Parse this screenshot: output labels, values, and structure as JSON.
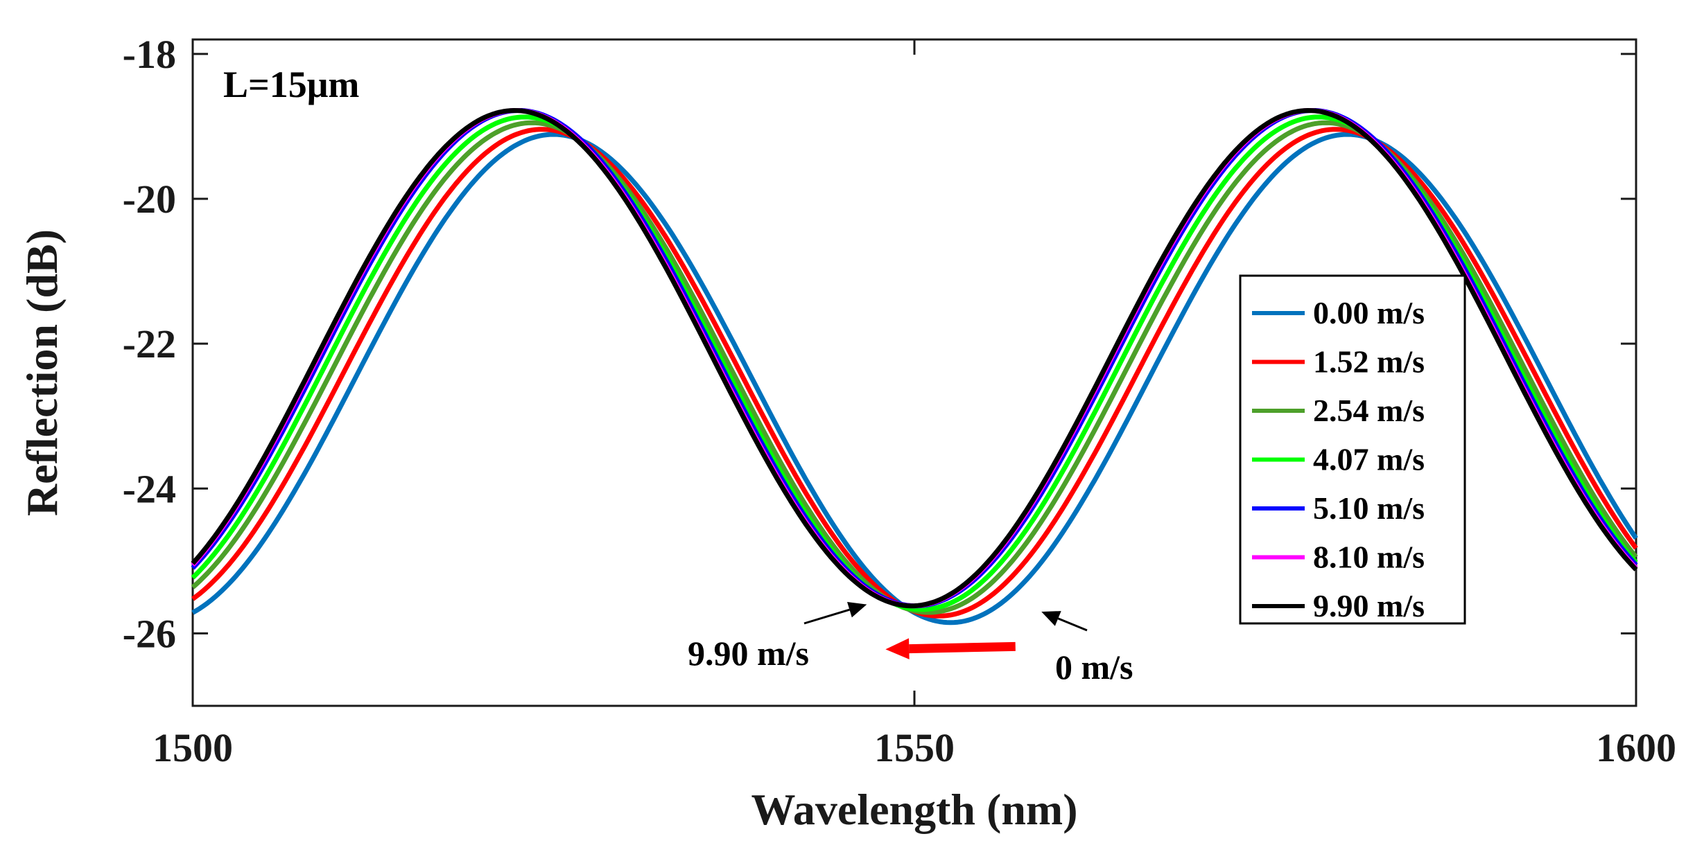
{
  "chart_data": {
    "type": "line",
    "title": "",
    "xlabel": "Wavelength (nm)",
    "ylabel": "Reflection (dB)",
    "xlim": [
      1500,
      1600
    ],
    "ylim": [
      -27,
      -17.8
    ],
    "xticks": [
      1500,
      1550,
      1600
    ],
    "yticks": [
      -18,
      -20,
      -22,
      -24,
      -26
    ],
    "xtick_labels": [
      "1500",
      "1550",
      "1600"
    ],
    "ytick_labels": [
      "-18",
      "-20",
      "-22",
      "-24",
      "-26"
    ],
    "grid": false,
    "legend_position": "right",
    "corner_label": "L=15μm",
    "model": {
      "formula": "y = center + amplitude*cos(2*pi*(x - peak)/period)",
      "period": 55,
      "wavelength_range": [
        1500,
        1600
      ]
    },
    "series": [
      {
        "name": "0.00 m/s",
        "color": "#0072BD",
        "center": -22.48,
        "amplitude": 3.37,
        "peak": 1525.0
      },
      {
        "name": "1.52 m/s",
        "color": "#FF0000",
        "center": -22.4,
        "amplitude": 3.36,
        "peak": 1524.2
      },
      {
        "name": "2.54 m/s",
        "color": "#4DA02A",
        "center": -22.33,
        "amplitude": 3.38,
        "peak": 1523.5
      },
      {
        "name": "4.07 m/s",
        "color": "#00FF00",
        "center": -22.27,
        "amplitude": 3.4,
        "peak": 1523.0
      },
      {
        "name": "5.10 m/s",
        "color": "#0000FF",
        "center": -22.2,
        "amplitude": 3.42,
        "peak": 1522.6
      },
      {
        "name": "8.10 m/s",
        "color": "#FF00FF",
        "center": -22.2,
        "amplitude": 3.42,
        "peak": 1522.4
      },
      {
        "name": "9.90 m/s",
        "color": "#000000",
        "center": -22.2,
        "amplitude": 3.42,
        "peak": 1522.3
      }
    ],
    "annotations": [
      {
        "text": "9.90 m/s",
        "arrow_tip": [
          1546.7,
          -25.6
        ]
      },
      {
        "text": "0 m/s",
        "arrow_tip": [
          1558.8,
          -25.7
        ]
      }
    ],
    "shift_arrow": {
      "color": "#FF0000",
      "from": [
        1557,
        -26.2
      ],
      "to": [
        1548,
        -26.2
      ]
    }
  }
}
